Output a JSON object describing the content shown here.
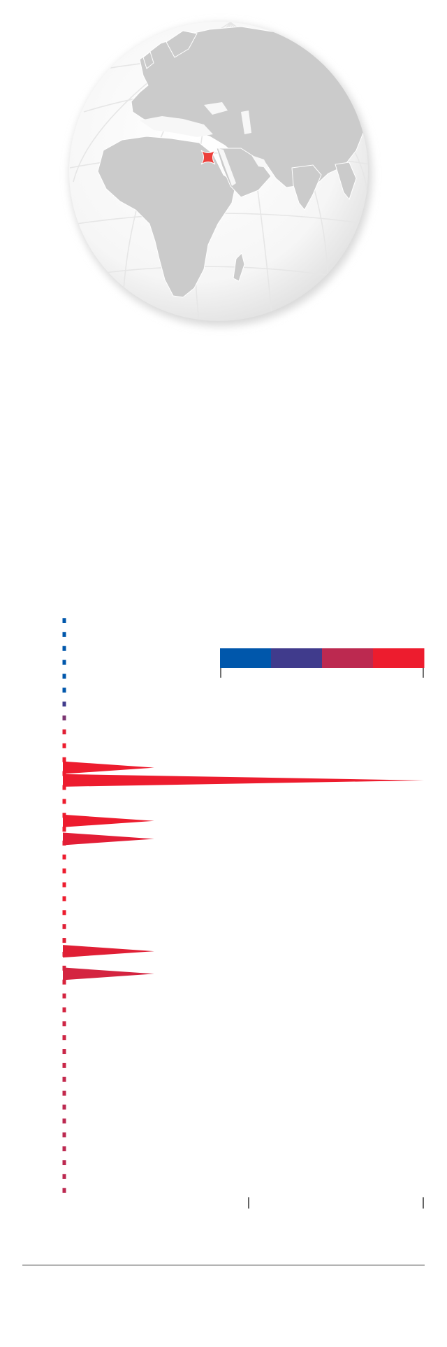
{
  "globe": {
    "ocean_color": "#f7f7f7",
    "land_color": "#cbcbcb",
    "grid_color": "#e9e9e9",
    "marker_color": "#ec3f3a",
    "marker_icon": "location-marker-icon"
  },
  "legend": {
    "colors": [
      "#0057ab",
      "#403b8c",
      "#bc2950",
      "#ed1c2e"
    ],
    "tick_count": 2
  },
  "chart_data": {
    "type": "timeline",
    "title": "",
    "xlabel": "",
    "ylabel": "",
    "y_range": [
      0,
      1
    ],
    "x_range": [
      0,
      1
    ],
    "x_axis_ticks": 2,
    "timeline_dots": [
      {
        "pos": 0.0,
        "color": "#0057ab"
      },
      {
        "pos": 0.024,
        "color": "#0057ab"
      },
      {
        "pos": 0.048,
        "color": "#0057ab"
      },
      {
        "pos": 0.072,
        "color": "#0057ab"
      },
      {
        "pos": 0.096,
        "color": "#0057ab"
      },
      {
        "pos": 0.12,
        "color": "#0057ab"
      },
      {
        "pos": 0.144,
        "color": "#403b8c"
      },
      {
        "pos": 0.168,
        "color": "#7b3571"
      },
      {
        "pos": 0.192,
        "color": "#e01f35"
      },
      {
        "pos": 0.216,
        "color": "#ed1c2e"
      },
      {
        "pos": 0.24,
        "color": "#ed1c2e"
      },
      {
        "pos": 0.264,
        "color": "#ed1c2e"
      },
      {
        "pos": 0.288,
        "color": "#ed1c2e"
      },
      {
        "pos": 0.312,
        "color": "#ed1c2e"
      },
      {
        "pos": 0.336,
        "color": "#ed1c2e"
      },
      {
        "pos": 0.36,
        "color": "#ed1c2e"
      },
      {
        "pos": 0.384,
        "color": "#ed1c2e"
      },
      {
        "pos": 0.408,
        "color": "#ed1c2e"
      },
      {
        "pos": 0.432,
        "color": "#ed1c2e"
      },
      {
        "pos": 0.456,
        "color": "#ed1c2e"
      },
      {
        "pos": 0.48,
        "color": "#ed1c2e"
      },
      {
        "pos": 0.504,
        "color": "#ed1c2e"
      },
      {
        "pos": 0.528,
        "color": "#e01f35"
      },
      {
        "pos": 0.552,
        "color": "#e01f35"
      },
      {
        "pos": 0.576,
        "color": "#d8223b"
      },
      {
        "pos": 0.6,
        "color": "#d8223b"
      },
      {
        "pos": 0.624,
        "color": "#d8223b"
      },
      {
        "pos": 0.648,
        "color": "#d42440"
      },
      {
        "pos": 0.672,
        "color": "#d42440"
      },
      {
        "pos": 0.696,
        "color": "#ce2645"
      },
      {
        "pos": 0.72,
        "color": "#ce2645"
      },
      {
        "pos": 0.744,
        "color": "#c92748"
      },
      {
        "pos": 0.768,
        "color": "#c92748"
      },
      {
        "pos": 0.792,
        "color": "#c3284c"
      },
      {
        "pos": 0.816,
        "color": "#c3284c"
      },
      {
        "pos": 0.84,
        "color": "#bc2950"
      },
      {
        "pos": 0.864,
        "color": "#bc2950"
      },
      {
        "pos": 0.888,
        "color": "#bc2950"
      },
      {
        "pos": 0.912,
        "color": "#bc2950"
      },
      {
        "pos": 0.936,
        "color": "#bc2950"
      },
      {
        "pos": 0.96,
        "color": "#bc2950"
      },
      {
        "pos": 0.984,
        "color": "#bc2950"
      }
    ],
    "series": [
      {
        "pos": 0.258,
        "value": 0.25,
        "color": "#ed1c2e"
      },
      {
        "pos": 0.28,
        "value": 1.0,
        "color": "#ed1c2e"
      },
      {
        "pos": 0.35,
        "value": 0.25,
        "color": "#ed1c2e"
      },
      {
        "pos": 0.381,
        "value": 0.25,
        "color": "#e31e36"
      },
      {
        "pos": 0.575,
        "value": 0.25,
        "color": "#e01f35"
      },
      {
        "pos": 0.614,
        "value": 0.25,
        "color": "#d42440"
      }
    ]
  }
}
